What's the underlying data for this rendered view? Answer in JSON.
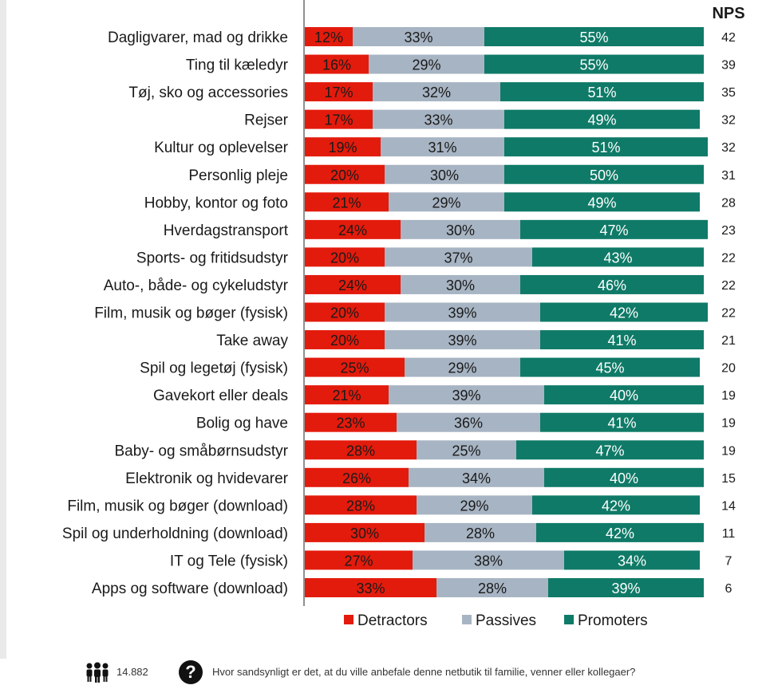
{
  "nps_header": "NPS",
  "colors": {
    "detractors": "#e31b0c",
    "passives": "#a7b4c3",
    "promoters": "#0f7a67",
    "axis": "#6b6b6b"
  },
  "legend": [
    "Detractors",
    "Passives",
    "Promoters"
  ],
  "footer": {
    "respondents": "14.882",
    "question": "Hvor sandsynligt er det, at du ville anbefale denne netbutik til familie, venner eller kollegaer?",
    "people_icon": "people-group-icon",
    "question_icon": "question-mark-icon"
  },
  "chart_data": {
    "type": "bar",
    "orientation": "horizontal",
    "stacked": true,
    "percent_scale": [
      0,
      100
    ],
    "categories": [
      "Dagligvarer, mad og drikke",
      "Ting til kæledyr",
      "Tøj, sko og accessories",
      "Rejser",
      "Kultur og oplevelser",
      "Personlig pleje",
      "Hobby, kontor og foto",
      "Hverdagstransport",
      "Sports- og fritidsudstyr",
      "Auto-, både- og cykeludstyr",
      "Film, musik og bøger (fysisk)",
      "Take away",
      "Spil og legetøj (fysisk)",
      "Gavekort eller deals",
      "Bolig og have",
      "Baby- og småbørnsudstyr",
      "Elektronik og hvidevarer",
      "Film, musik og bøger (download)",
      "Spil og underholdning (download)",
      "IT og Tele (fysisk)",
      "Apps og software (download)"
    ],
    "series": [
      {
        "name": "Detractors",
        "values": [
          12,
          16,
          17,
          17,
          19,
          20,
          21,
          24,
          20,
          24,
          20,
          20,
          25,
          21,
          23,
          28,
          26,
          28,
          30,
          27,
          33
        ]
      },
      {
        "name": "Passives",
        "values": [
          33,
          29,
          32,
          33,
          31,
          30,
          29,
          30,
          37,
          30,
          39,
          39,
          29,
          39,
          36,
          25,
          34,
          29,
          28,
          38,
          28
        ]
      },
      {
        "name": "Promoters",
        "values": [
          55,
          55,
          51,
          49,
          51,
          50,
          49,
          47,
          43,
          46,
          42,
          41,
          45,
          40,
          41,
          47,
          40,
          42,
          42,
          34,
          39
        ]
      }
    ],
    "nps": [
      42,
      39,
      35,
      32,
      32,
      31,
      28,
      23,
      22,
      22,
      22,
      21,
      20,
      19,
      19,
      19,
      15,
      14,
      11,
      7,
      6
    ],
    "legend_position": "bottom",
    "grid": false
  }
}
